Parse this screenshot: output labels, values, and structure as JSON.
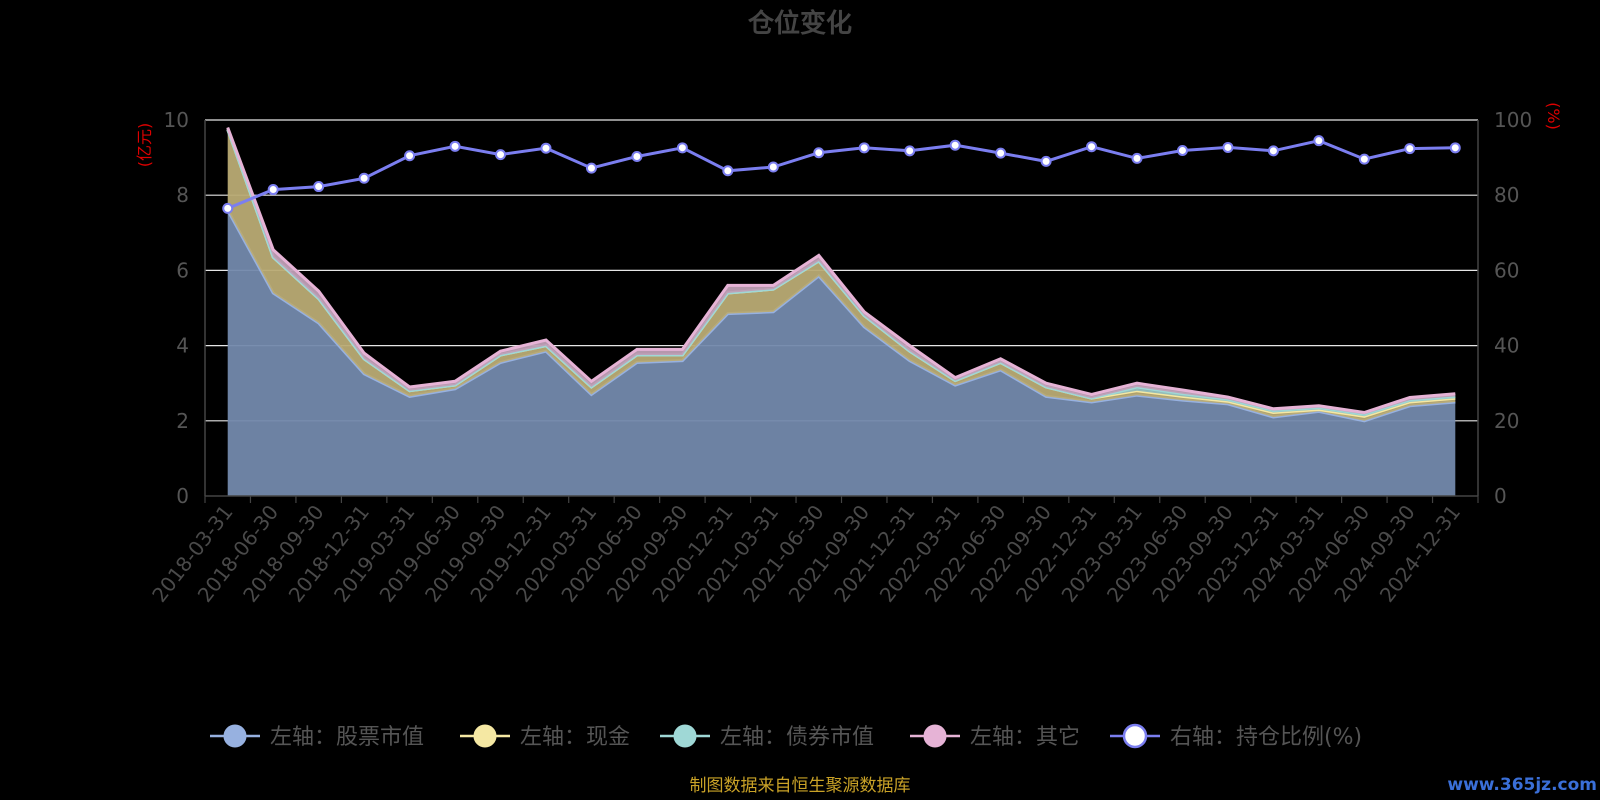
{
  "title": "仓位变化",
  "source_note": "制图数据来自恒生聚源数据库",
  "watermark": "www.365jz.com",
  "colors": {
    "background": "#000000",
    "stock": "#97b1e0",
    "cash": "#f5e8a3",
    "bond": "#9fd8d6",
    "other": "#e6b3d6",
    "ratio": "#7b7ef0",
    "grid": "#ffffff",
    "unit": "#dd0000"
  },
  "chart_data": {
    "type": "area",
    "title": "仓位变化",
    "x": [
      "2018-03-31",
      "2018-06-30",
      "2018-09-30",
      "2018-12-31",
      "2019-03-31",
      "2019-06-30",
      "2019-09-30",
      "2019-12-31",
      "2020-03-31",
      "2020-06-30",
      "2020-09-30",
      "2020-12-31",
      "2021-03-31",
      "2021-06-30",
      "2021-09-30",
      "2021-12-31",
      "2022-03-31",
      "2022-06-30",
      "2022-09-30",
      "2022-12-31",
      "2023-03-31",
      "2023-06-30",
      "2023-09-30",
      "2023-12-31",
      "2024-03-31",
      "2024-06-30",
      "2024-09-30",
      "2024-12-31"
    ],
    "left_axis": {
      "unit_label": "(亿元)",
      "ylim": [
        0,
        10
      ],
      "ticks": [
        0,
        2,
        4,
        6,
        8,
        10
      ]
    },
    "right_axis": {
      "unit_label": "(%)",
      "ylim": [
        0,
        100
      ],
      "ticks": [
        0,
        20,
        40,
        60,
        80,
        100
      ]
    },
    "grid": true,
    "legend_position": "bottom",
    "stacked": true,
    "series": [
      {
        "name": "左轴：股票市值",
        "axis": "left",
        "color_key": "stock",
        "values": [
          7.6,
          5.4,
          4.6,
          3.25,
          2.65,
          2.85,
          3.55,
          3.85,
          2.7,
          3.55,
          3.6,
          4.85,
          4.9,
          5.85,
          4.5,
          3.6,
          2.95,
          3.35,
          2.65,
          2.5,
          2.68,
          2.55,
          2.45,
          2.1,
          2.25,
          2.0,
          2.4,
          2.5
        ]
      },
      {
        "name": "左轴：现金",
        "axis": "left",
        "color_key": "cash",
        "values": [
          2.15,
          0.95,
          0.65,
          0.4,
          0.15,
          0.1,
          0.2,
          0.15,
          0.2,
          0.2,
          0.15,
          0.55,
          0.6,
          0.4,
          0.3,
          0.25,
          0.12,
          0.2,
          0.25,
          0.1,
          0.12,
          0.1,
          0.07,
          0.12,
          0.05,
          0.12,
          0.1,
          0.1
        ]
      },
      {
        "name": "左轴：债券市值",
        "axis": "left",
        "color_key": "bond",
        "values": [
          0,
          0,
          0,
          0,
          0,
          0,
          0,
          0,
          0,
          0,
          0,
          0,
          0,
          0,
          0,
          0,
          0,
          0,
          0,
          0,
          0.1,
          0.07,
          0.05,
          0.05,
          0.05,
          0.05,
          0.05,
          0.05
        ]
      },
      {
        "name": "左轴：其它",
        "axis": "left",
        "color_key": "other",
        "values": [
          0.05,
          0.2,
          0.2,
          0.15,
          0.1,
          0.1,
          0.1,
          0.15,
          0.15,
          0.15,
          0.15,
          0.2,
          0.1,
          0.15,
          0.1,
          0.15,
          0.08,
          0.1,
          0.1,
          0.1,
          0.1,
          0.1,
          0.06,
          0.05,
          0.05,
          0.05,
          0.07,
          0.07
        ]
      },
      {
        "name": "右轴：持仓比例(%)",
        "axis": "right",
        "color_key": "ratio",
        "values": [
          76.5,
          81.5,
          82.3,
          84.5,
          90.5,
          93,
          90.8,
          92.5,
          87.2,
          90.3,
          92.6,
          86.5,
          87.5,
          91.3,
          92.6,
          91.8,
          93.3,
          91.2,
          89,
          92.9,
          89.8,
          91.9,
          92.7,
          91.8,
          94.5,
          89.6,
          92.4,
          92.6
        ]
      }
    ]
  }
}
